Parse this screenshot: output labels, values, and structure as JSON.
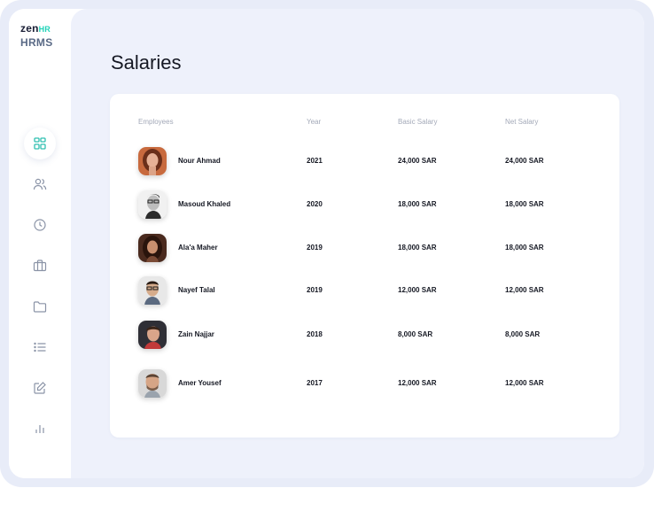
{
  "brand": {
    "logo_main": "zen",
    "logo_accent": "HR",
    "subtitle": "HRMS",
    "accent_color": "#1fd3b8"
  },
  "sidebar": {
    "items": [
      {
        "icon": "dashboard-grid-icon",
        "active": true
      },
      {
        "icon": "users-icon",
        "active": false
      },
      {
        "icon": "clock-icon",
        "active": false
      },
      {
        "icon": "briefcase-icon",
        "active": false
      },
      {
        "icon": "folder-icon",
        "active": false
      },
      {
        "icon": "list-icon",
        "active": false
      },
      {
        "icon": "edit-icon",
        "active": false
      },
      {
        "icon": "bar-chart-icon",
        "active": false
      }
    ]
  },
  "page": {
    "title": "Salaries"
  },
  "table": {
    "headers": {
      "employees": "Employees",
      "year": "Year",
      "basic": "Basic Salary",
      "net": "Net Salary"
    },
    "rows": [
      {
        "name": "Nour Ahmad",
        "year": "2021",
        "basic": "24,000 SAR",
        "net": "24,000 SAR"
      },
      {
        "name": "Masoud Khaled",
        "year": "2020",
        "basic": "18,000 SAR",
        "net": "18,000 SAR"
      },
      {
        "name": "Ala'a Maher",
        "year": "2019",
        "basic": "18,000 SAR",
        "net": "18,000 SAR"
      },
      {
        "name": "Nayef Talal",
        "year": "2019",
        "basic": "12,000 SAR",
        "net": "12,000 SAR"
      },
      {
        "name": "Zain Najjar",
        "year": "2018",
        "basic": "8,000 SAR",
        "net": "8,000 SAR"
      },
      {
        "name": "Amer Yousef",
        "year": "2017",
        "basic": "12,000 SAR",
        "net": "12,000 SAR"
      }
    ]
  }
}
